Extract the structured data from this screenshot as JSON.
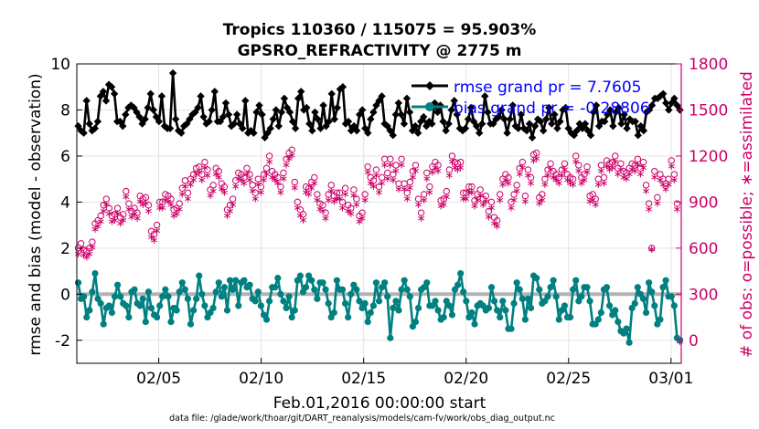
{
  "chart_data": {
    "type": "line",
    "title_line1": "Tropics 110360 / 115075 = 95.903%",
    "title_line2": "GPSRO_REFRACTIVITY @ 2775 m",
    "xlabel": "Feb.01,2016 00:00:00 start",
    "ylabel_left": "rmse and bias (model - observation)",
    "ylabel_right": "# of obs: o=possible; ∗=assimilated",
    "footer": "data file: /glade/work/thoar/git/DART_reanalysis/models/cam-fv/work/obs_diag_output.nc",
    "x_range": [
      1,
      30.5
    ],
    "x_ticks": [
      5,
      10,
      15,
      20,
      25,
      30
    ],
    "x_tick_labels": [
      "02/05",
      "02/10",
      "02/15",
      "02/20",
      "02/25",
      "03/01"
    ],
    "ylim_left": [
      -3,
      10
    ],
    "y_ticks_left": [
      -2,
      0,
      2,
      4,
      6,
      8,
      10
    ],
    "y_tick_labels_left": [
      "-2",
      "0",
      "2",
      "4",
      "6",
      "8",
      "10"
    ],
    "ylim_right": [
      -150,
      1800
    ],
    "y_ticks_right": [
      0,
      300,
      600,
      900,
      1200,
      1500,
      1800
    ],
    "y_tick_labels_right": [
      "0",
      "300",
      "600",
      "900",
      "1200",
      "1500",
      "1800"
    ],
    "grid": true,
    "legend_position": "top-right",
    "legend": [
      {
        "label": "rmse grand pr = 7.7605",
        "color": "#000000"
      },
      {
        "label": "bias grand pr = -0.28806",
        "color": "#008080"
      }
    ],
    "rmse_values": [
      7.3,
      7.1,
      7.0,
      8.4,
      7.4,
      7.1,
      7.2,
      7.5,
      8.6,
      8.8,
      8.4,
      9.1,
      9.0,
      8.7,
      7.5,
      7.5,
      7.3,
      7.8,
      8.1,
      8.2,
      8.1,
      7.9,
      7.7,
      7.4,
      7.6,
      8.1,
      8.7,
      8.0,
      7.7,
      7.5,
      8.6,
      7.3,
      7.2,
      7.2,
      9.6,
      7.6,
      7.1,
      7.0,
      7.3,
      7.4,
      7.6,
      7.8,
      7.9,
      8.1,
      8.6,
      7.7,
      7.4,
      7.5,
      8.0,
      8.8,
      7.5,
      7.5,
      7.7,
      8.3,
      7.8,
      7.3,
      7.4,
      7.8,
      7.4,
      7.2,
      8.4,
      7.0,
      7.1,
      7.0,
      7.9,
      8.2,
      7.8,
      6.8,
      7.0,
      7.2,
      7.6,
      8.0,
      7.3,
      7.9,
      8.5,
      8.1,
      7.9,
      7.5,
      7.2,
      8.5,
      8.8,
      8.0,
      8.1,
      7.4,
      7.1,
      7.9,
      7.6,
      7.2,
      8.2,
      7.3,
      7.5,
      8.7,
      7.6,
      8.1,
      8.9,
      9.0,
      7.4,
      7.5,
      7.1,
      7.3,
      7.1,
      7.8,
      8.0,
      7.2,
      7.0,
      7.6,
      7.9,
      8.2,
      8.4,
      8.6,
      7.4,
      7.3,
      7.1,
      6.9,
      7.8,
      8.3,
      7.8,
      7.4,
      8.5,
      7.9,
      7.1,
      7.3,
      7.0,
      7.5,
      7.7,
      7.3,
      7.5,
      7.4,
      8.3,
      7.9,
      8.2,
      7.5,
      7.1,
      7.4,
      8.0,
      8.4,
      7.8,
      7.2,
      7.1,
      7.2,
      7.6,
      8.1,
      7.5,
      7.3,
      7.0,
      7.4,
      8.6,
      7.9,
      7.4,
      7.4,
      7.6,
      7.7,
      8.0,
      7.6,
      7.0,
      7.6,
      8.2,
      7.3,
      7.2,
      7.8,
      7.2,
      7.1,
      7.4,
      6.8,
      7.3,
      7.6,
      7.5,
      7.1,
      7.6,
      8.1,
      7.4,
      7.8,
      7.2,
      7.5,
      8.0,
      8.1,
      7.2,
      7.0,
      6.9,
      7.1,
      7.4,
      7.2,
      7.4,
      7.1,
      6.9,
      7.9,
      8.2,
      7.3,
      7.5,
      7.5,
      7.8,
      8.0,
      7.3,
      7.9,
      8.1,
      7.4,
      7.8,
      7.2,
      7.6,
      7.5,
      7.5,
      6.9,
      7.3,
      7.1,
      7.9,
      8.0,
      8.2,
      8.5,
      8.5,
      8.6,
      8.7,
      8.3,
      8.0,
      8.3,
      8.5,
      8.2,
      8.0
    ],
    "bias_values": [
      0.5,
      -0.2,
      -0.1,
      -1.0,
      -0.7,
      0.1,
      0.9,
      -0.2,
      -0.4,
      -1.3,
      -0.6,
      -0.5,
      -0.8,
      -0.1,
      0.4,
      -0.1,
      -0.4,
      -0.5,
      -1.0,
      0.1,
      0.2,
      -0.4,
      -0.5,
      -0.2,
      -1.2,
      0.1,
      -0.6,
      -0.9,
      -1.0,
      -0.5,
      -0.1,
      0.2,
      -0.1,
      -1.2,
      -0.6,
      -0.7,
      0.1,
      0.5,
      0.2,
      -0.2,
      -1.3,
      -0.7,
      -0.2,
      0.8,
      0.0,
      -0.5,
      -1.0,
      -0.8,
      -0.6,
      0.1,
      0.5,
      -0.1,
      0.3,
      -0.7,
      0.6,
      0.2,
      0.6,
      -0.5,
      0.5,
      0.6,
      0.3,
      0.4,
      -0.2,
      -0.3,
      0.1,
      -0.5,
      -0.9,
      -1.1,
      -0.3,
      0.3,
      0.3,
      0.7,
      0.0,
      -0.3,
      -0.6,
      -0.1,
      -1.0,
      -0.7,
      0.6,
      0.8,
      0.1,
      0.3,
      0.8,
      0.6,
      0.2,
      -0.2,
      0.5,
      0.5,
      0.2,
      -0.4,
      -1.0,
      -0.8,
      0.6,
      0.2,
      0.2,
      -0.4,
      -1.0,
      0.0,
      0.4,
      0.2,
      -0.3,
      -0.6,
      -0.4,
      -1.2,
      -0.8,
      -0.5,
      0.5,
      -0.3,
      0.3,
      0.5,
      -0.1,
      -1.9,
      -0.6,
      -0.3,
      -0.7,
      0.2,
      0.6,
      0.2,
      -0.1,
      -1.4,
      -1.2,
      -0.6,
      0.2,
      0.3,
      0.5,
      -0.5,
      -0.5,
      -0.3,
      -0.7,
      -1.1,
      -1.0,
      -0.3,
      -0.5,
      -0.9,
      0.2,
      0.4,
      0.9,
      0.1,
      -0.3,
      -1.0,
      -0.8,
      -1.3,
      -0.5,
      -0.4,
      -0.5,
      -0.7,
      -0.6,
      0.3,
      -0.3,
      -0.7,
      -1.0,
      -0.3,
      -0.7,
      -1.5,
      -1.5,
      -0.4,
      0.5,
      0.2,
      -0.2,
      -1.1,
      -0.2,
      -0.6,
      0.8,
      0.7,
      0.2,
      -0.4,
      -0.3,
      -0.1,
      0.3,
      0.6,
      -0.1,
      -1.1,
      -0.7,
      -0.5,
      -1.0,
      -1.0,
      0.2,
      0.6,
      -0.3,
      -0.1,
      0.3,
      0.3,
      -0.3,
      -1.3,
      -1.3,
      -1.1,
      -0.8,
      0.2,
      0.3,
      -0.5,
      -0.9,
      -0.7,
      -1.2,
      -1.6,
      -1.7,
      -1.5,
      -2.1,
      -0.6,
      -0.4,
      0.3,
      0.0,
      -0.2,
      -0.8,
      0.5,
      0.1,
      -0.5,
      -1.3,
      -1.1,
      0.3,
      0.6,
      -0.1,
      -0.1,
      -0.5,
      -1.9,
      -2.0
    ],
    "possible_values": [
      600,
      630,
      590,
      580,
      600,
      640,
      760,
      780,
      810,
      880,
      920,
      860,
      810,
      820,
      860,
      800,
      820,
      970,
      890,
      840,
      860,
      830,
      940,
      920,
      930,
      880,
      710,
      690,
      750,
      900,
      900,
      950,
      940,
      920,
      850,
      860,
      890,
      990,
      1040,
      960,
      1050,
      1080,
      1120,
      1130,
      1080,
      1160,
      1110,
      980,
      1010,
      1120,
      1100,
      1020,
      1000,
      850,
      880,
      920,
      1040,
      1090,
      1080,
      1060,
      1120,
      1080,
      1010,
      960,
      1050,
      1000,
      1080,
      1120,
      1200,
      1100,
      1080,
      1060,
      1000,
      1090,
      1180,
      1220,
      1240,
      1030,
      900,
      850,
      820,
      1000,
      990,
      1030,
      1060,
      950,
      890,
      880,
      830,
      950,
      1010,
      940,
      960,
      960,
      900,
      990,
      880,
      860,
      980,
      920,
      810,
      830,
      950,
      1130,
      1060,
      1040,
      1110,
      1000,
      1060,
      1180,
      1090,
      1180,
      1080,
      1140,
      1020,
      1180,
      1020,
      960,
      1030,
      1100,
      1140,
      920,
      830,
      950,
      1090,
      1000,
      1130,
      1160,
      1140,
      910,
      920,
      970,
      1110,
      1200,
      1160,
      1150,
      1160,
      960,
      960,
      1000,
      1000,
      910,
      950,
      980,
      920,
      940,
      840,
      900,
      800,
      780,
      950,
      1050,
      1080,
      1060,
      900,
      950,
      1010,
      1120,
      1160,
      940,
      1110,
      1060,
      1210,
      1220,
      930,
      950,
      1050,
      1110,
      1150,
      1100,
      1080,
      1060,
      1110,
      1150,
      1080,
      1060,
      1050,
      1200,
      1140,
      1060,
      1080,
      1130,
      940,
      950,
      920,
      1050,
      1140,
      1060,
      1170,
      1150,
      1160,
      1200,
      1120,
      1150,
      1100,
      1090,
      1120,
      1150,
      1140,
      1180,
      1120,
      1160,
      1010,
      890,
      600,
      1100,
      930,
      1080,
      1050,
      1020,
      1050,
      1170,
      1080,
      890,
      0
    ],
    "assimilated_values": [
      570,
      600,
      560,
      550,
      570,
      610,
      730,
      750,
      780,
      850,
      890,
      830,
      780,
      790,
      830,
      770,
      790,
      940,
      860,
      810,
      830,
      800,
      910,
      890,
      900,
      850,
      680,
      660,
      720,
      870,
      870,
      920,
      910,
      890,
      820,
      830,
      860,
      960,
      1010,
      930,
      1020,
      1050,
      1090,
      1100,
      1050,
      1130,
      1080,
      950,
      980,
      1090,
      1070,
      990,
      970,
      820,
      850,
      890,
      1010,
      1060,
      1050,
      1030,
      1090,
      1050,
      980,
      930,
      1020,
      970,
      1050,
      1090,
      1170,
      1070,
      1050,
      1030,
      970,
      1060,
      1150,
      1190,
      1210,
      1000,
      870,
      820,
      790,
      970,
      960,
      1000,
      1030,
      920,
      860,
      850,
      800,
      920,
      980,
      910,
      930,
      930,
      870,
      960,
      850,
      830,
      950,
      890,
      780,
      800,
      920,
      1100,
      1030,
      1010,
      1080,
      970,
      1030,
      1150,
      1060,
      1150,
      1050,
      1110,
      990,
      1150,
      990,
      930,
      1000,
      1070,
      1110,
      890,
      800,
      920,
      1060,
      970,
      1100,
      1130,
      1110,
      880,
      890,
      940,
      1080,
      1170,
      1130,
      1120,
      1130,
      930,
      930,
      970,
      970,
      880,
      920,
      950,
      890,
      910,
      810,
      870,
      770,
      750,
      920,
      1020,
      1050,
      1030,
      870,
      920,
      980,
      1090,
      1130,
      910,
      1080,
      1030,
      1180,
      1190,
      900,
      920,
      1020,
      1080,
      1120,
      1070,
      1050,
      1030,
      1080,
      1120,
      1050,
      1030,
      1020,
      1170,
      1110,
      1030,
      1050,
      1100,
      910,
      920,
      890,
      1020,
      1110,
      1030,
      1140,
      1120,
      1130,
      1170,
      1090,
      1120,
      1070,
      1060,
      1090,
      1120,
      1110,
      1150,
      1090,
      1130,
      980,
      860,
      600,
      1070,
      900,
      1050,
      1020,
      990,
      1020,
      1140,
      1050,
      860,
      0
    ]
  }
}
